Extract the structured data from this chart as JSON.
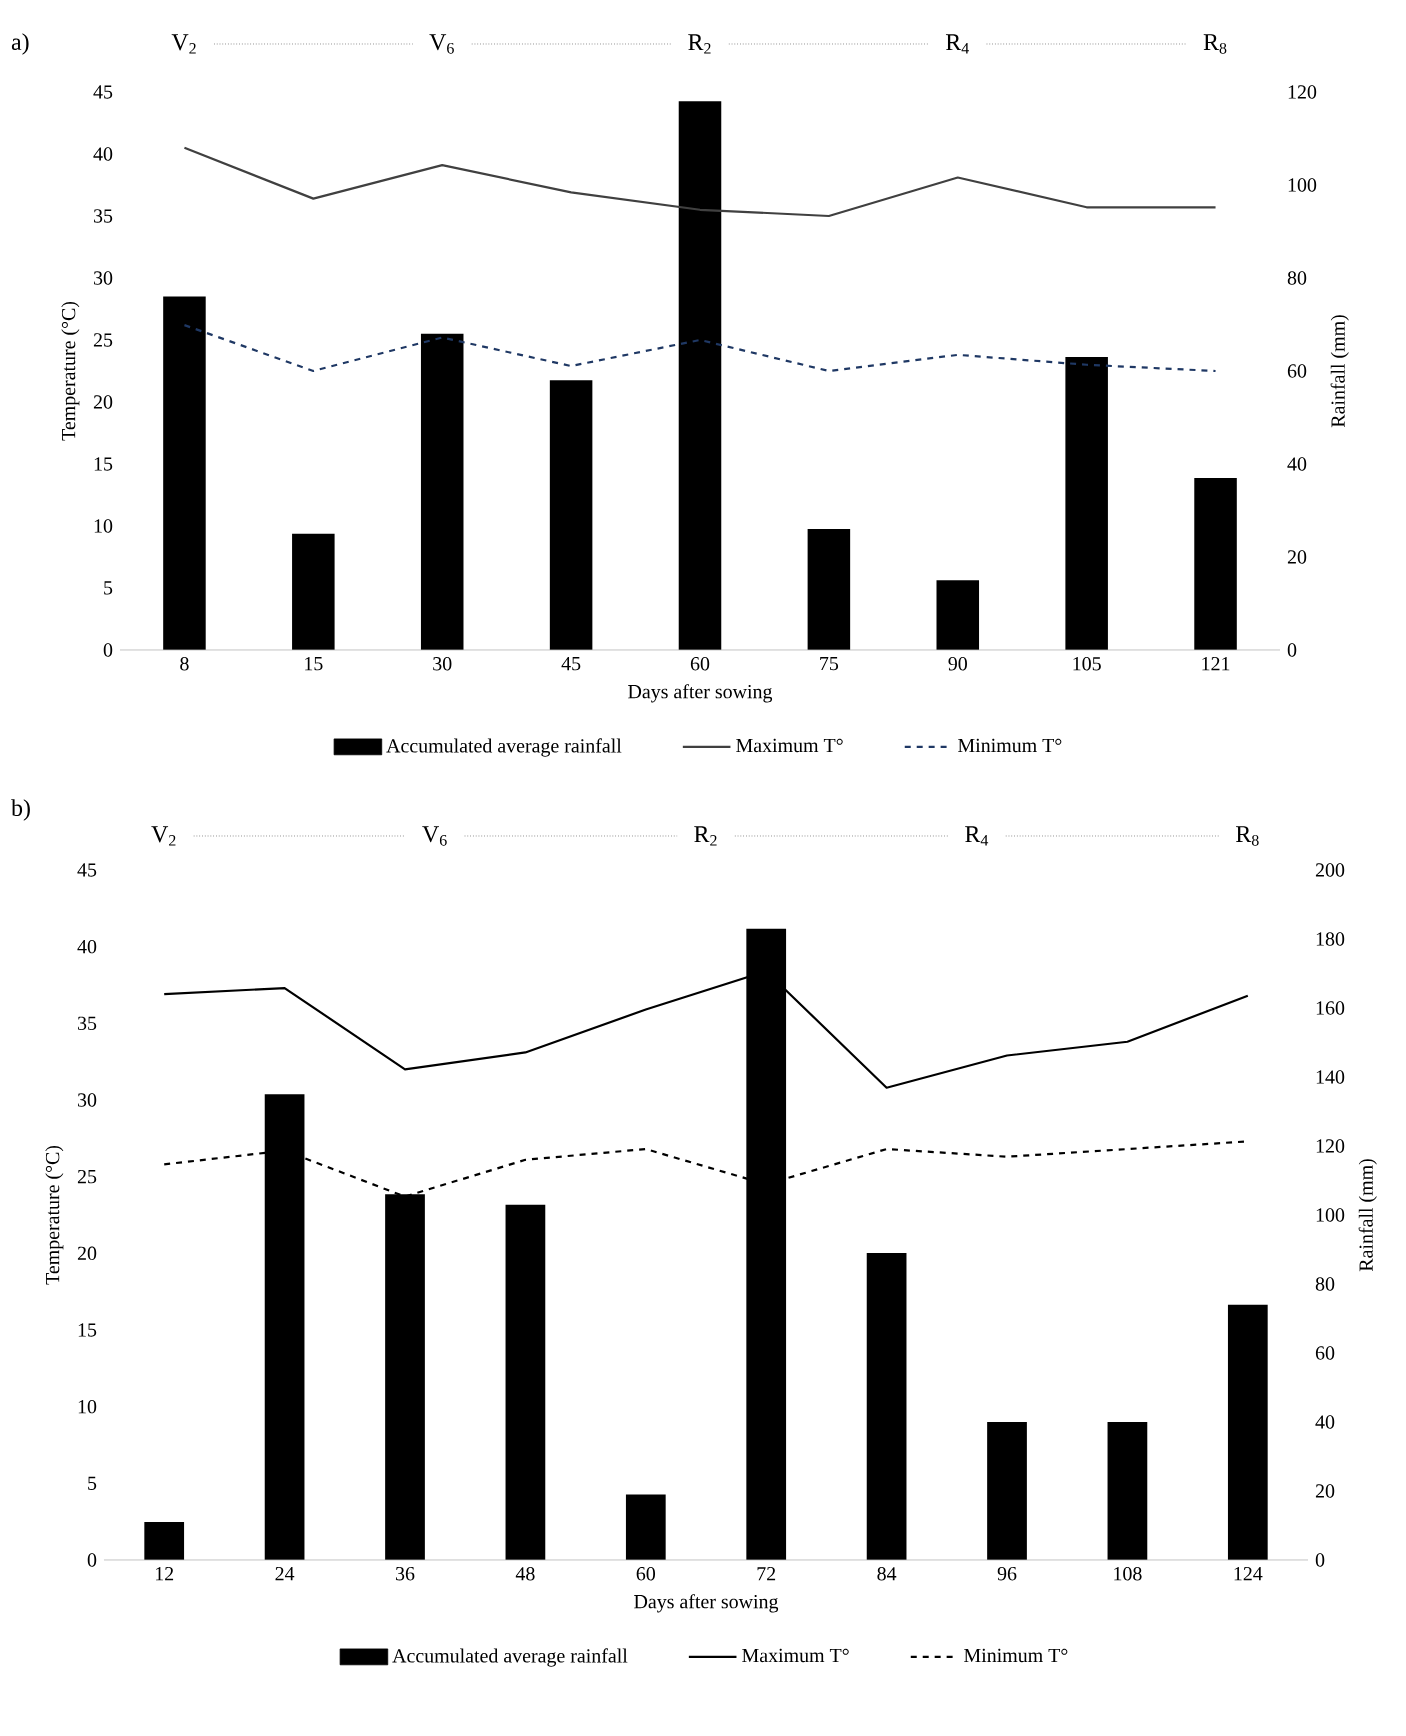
{
  "chart_data": [
    {
      "type": "bar",
      "title": "a)",
      "xlabel": "Days after sowing",
      "ylabel": "Temperature (°C)",
      "y2label": "Rainfall (mm)",
      "legend": "bottom",
      "categories": [
        "8",
        "15",
        "30",
        "45",
        "60",
        "75",
        "90",
        "105",
        "121"
      ],
      "series": [
        {
          "name": "Accumulated average rainfall",
          "axis": "y2",
          "color": "#000000",
          "values": [
            76,
            25,
            68,
            58,
            118,
            26,
            15,
            63,
            37
          ]
        },
        {
          "name": "Maximum T°",
          "type": "line",
          "color": "#404040",
          "line_style": "solid",
          "values": [
            40.5,
            36.4,
            39.1,
            36.9,
            35.5,
            35,
            38.1,
            35.7,
            35.7
          ]
        },
        {
          "name": "Minimum T°",
          "type": "line",
          "color": "#1f3864",
          "line_style": "dashed",
          "values": [
            26.2,
            22.5,
            25.2,
            22.9,
            25,
            22.5,
            23.8,
            23,
            22.5
          ]
        }
      ],
      "ylim": [
        0,
        45
      ],
      "yticks": [
        0,
        5,
        10,
        15,
        20,
        25,
        30,
        35,
        40,
        45
      ],
      "y2lim": [
        0,
        120
      ],
      "y2ticks": [
        0,
        20,
        40,
        60,
        80,
        100,
        120
      ],
      "annotations": [
        "V$_{2}$",
        "V$_{6}$",
        "R$_{2}$",
        "R$_{4}$",
        "R$_{8}$"
      ]
    },
    {
      "type": "bar",
      "title": "b)",
      "xlabel": "Days after sowing",
      "ylabel": "Temperature (°C)",
      "y2label": "Rainfall (mm)",
      "legend": "bottom",
      "categories": [
        "12",
        "24",
        "36",
        "48",
        "60",
        "72",
        "84",
        "96",
        "108",
        "124"
      ],
      "series": [
        {
          "name": "Accumulated average rainfall",
          "axis": "y2",
          "color": "#000000",
          "values": [
            11,
            135,
            106,
            103,
            19,
            183,
            89,
            40,
            40,
            74
          ]
        },
        {
          "name": "Maximum T°",
          "type": "line",
          "color": "#000000",
          "line_style": "solid",
          "values": [
            36.9,
            37.3,
            32,
            33.1,
            35.9,
            38.4,
            30.8,
            32.9,
            33.8,
            36.8
          ]
        },
        {
          "name": "Minimum T°",
          "type": "line",
          "color": "#000000",
          "line_style": "dashed",
          "values": [
            25.8,
            26.7,
            23.7,
            26.1,
            26.8,
            24.5,
            26.8,
            26.3,
            26.8,
            27.3
          ]
        }
      ],
      "ylim": [
        0,
        45
      ],
      "yticks": [
        0,
        5,
        10,
        15,
        20,
        25,
        30,
        35,
        40,
        45
      ],
      "y2lim": [
        0,
        200
      ],
      "y2ticks": [
        0,
        20,
        40,
        60,
        80,
        100,
        120,
        140,
        160,
        180,
        200
      ],
      "annotations": [
        "V$_{2}$",
        "V$_{6}$",
        "R$_{2}$",
        "R$_{4}$",
        "R$_{8}$"
      ]
    }
  ]
}
